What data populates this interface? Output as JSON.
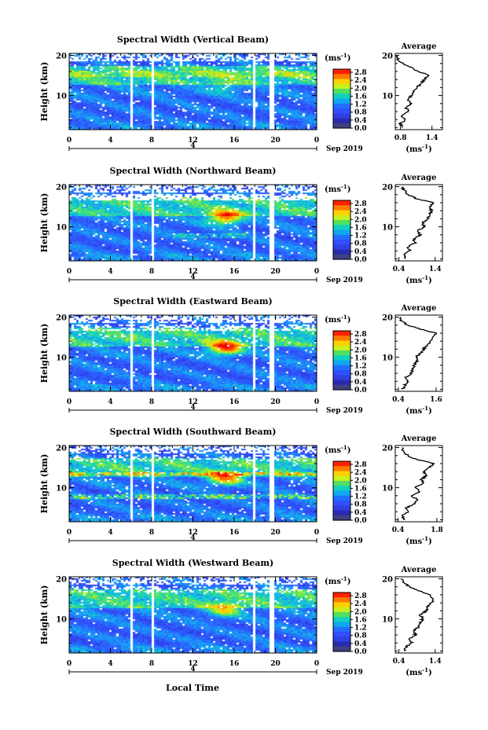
{
  "page": {
    "xlabel": "Local Time"
  },
  "colorbar": {
    "unit": "(ms",
    "unit_exp": "-1",
    "unit_close": ")",
    "ticks": [
      "2.8",
      "2.4",
      "2.0",
      "1.6",
      "1.2",
      "0.8",
      "0.4",
      "0.0"
    ],
    "colors": [
      "#ff2000",
      "#ff7a00",
      "#ffd000",
      "#c8f020",
      "#50e060",
      "#10d0c0",
      "#10a8f0",
      "#2070ff",
      "#3050ff",
      "#3040e0",
      "#2a2ab0",
      "#404080"
    ]
  },
  "chart_data": [
    {
      "type": "heatmap",
      "title": "Spectral Width (Vertical Beam)",
      "ylabel": "Height (km)",
      "yticks": [
        "20",
        "10"
      ],
      "xticks": [
        "0",
        "4",
        "8",
        "12",
        "16",
        "20",
        "0"
      ],
      "date_label": "Sep 2019",
      "day_label": "4",
      "xlim_hours": [
        0,
        24
      ],
      "ylim_km": [
        1.5,
        20.5
      ],
      "data_gaps_hours": [
        [
          5.8,
          6.1
        ],
        [
          7.8,
          8.2
        ],
        [
          17.6,
          17.9
        ],
        [
          19.4,
          19.7
        ]
      ],
      "avg": {
        "title": "Average",
        "xlabel": "(ms",
        "xlabel_exp": "-1",
        "xlabel_close": ")",
        "xticks": [
          "0.8",
          "1.4"
        ],
        "xlim": [
          0.7,
          1.6
        ],
        "yticks": [
          "20",
          "10"
        ]
      },
      "avg_profile": {
        "height_km": [
          2,
          3,
          4,
          5,
          6,
          7,
          8,
          9,
          10,
          11,
          12,
          13,
          14,
          15,
          16,
          17,
          18,
          19,
          20
        ],
        "width_ms": [
          0.85,
          0.8,
          0.9,
          0.82,
          0.95,
          0.9,
          1.0,
          0.95,
          1.0,
          1.05,
          1.1,
          1.2,
          1.25,
          1.35,
          1.15,
          1.0,
          0.85,
          0.75,
          0.72
        ]
      }
    },
    {
      "type": "heatmap",
      "title": "Spectral Width (Northward Beam)",
      "ylabel": "Height (km)",
      "yticks": [
        "20",
        "10"
      ],
      "xticks": [
        "0",
        "4",
        "8",
        "12",
        "16",
        "20",
        "0"
      ],
      "date_label": "Sep 2019",
      "day_label": "4",
      "xlim_hours": [
        0,
        24
      ],
      "ylim_km": [
        1.5,
        20.5
      ],
      "data_gaps_hours": [
        [
          5.8,
          6.1
        ],
        [
          7.8,
          8.2
        ],
        [
          17.6,
          17.9
        ],
        [
          19.4,
          19.7
        ]
      ],
      "avg": {
        "title": "Average",
        "xlabel": "(ms",
        "xlabel_exp": "-1",
        "xlabel_close": ")",
        "xticks": [
          "0.4",
          "1.4"
        ],
        "xlim": [
          0.3,
          1.6
        ],
        "yticks": [
          "20",
          "10"
        ]
      },
      "avg_profile": {
        "height_km": [
          2,
          3,
          4,
          5,
          6,
          7,
          8,
          9,
          10,
          11,
          12,
          13,
          14,
          15,
          16,
          17,
          18,
          19,
          20
        ],
        "width_ms": [
          0.6,
          0.55,
          0.7,
          0.65,
          0.85,
          0.8,
          1.0,
          0.9,
          1.1,
          1.05,
          1.2,
          1.25,
          1.3,
          1.25,
          1.35,
          0.9,
          0.65,
          0.55,
          0.5
        ]
      }
    },
    {
      "type": "heatmap",
      "title": "Spectral Width (Eastward Beam)",
      "ylabel": "Height (km)",
      "yticks": [
        "20",
        "10"
      ],
      "xticks": [
        "0",
        "4",
        "8",
        "12",
        "16",
        "20",
        "0"
      ],
      "date_label": "Sep 2019",
      "day_label": "4",
      "xlim_hours": [
        0,
        24
      ],
      "ylim_km": [
        1.5,
        20.5
      ],
      "data_gaps_hours": [
        [
          5.8,
          6.1
        ],
        [
          7.8,
          8.2
        ],
        [
          17.6,
          17.9
        ],
        [
          19.4,
          19.7
        ]
      ],
      "avg": {
        "title": "Average",
        "xlabel": "(ms",
        "xlabel_exp": "-1",
        "xlabel_close": ")",
        "xticks": [
          "0.4",
          "1.6"
        ],
        "xlim": [
          0.3,
          1.8
        ],
        "yticks": [
          "20",
          "10"
        ]
      },
      "avg_profile": {
        "height_km": [
          2,
          3,
          4,
          5,
          6,
          7,
          8,
          9,
          10,
          11,
          12,
          13,
          14,
          15,
          16,
          17,
          18,
          19,
          20
        ],
        "width_ms": [
          0.55,
          0.6,
          0.7,
          0.65,
          0.8,
          0.85,
          0.9,
          1.0,
          0.95,
          1.1,
          1.2,
          1.3,
          1.45,
          1.5,
          1.6,
          1.1,
          0.7,
          0.5,
          0.45
        ]
      }
    },
    {
      "type": "heatmap",
      "title": "Spectral Width (Southward Beam)",
      "ylabel": "Height (km)",
      "yticks": [
        "20",
        "10"
      ],
      "xticks": [
        "0",
        "4",
        "8",
        "12",
        "16",
        "20",
        "0"
      ],
      "date_label": "Sep 2019",
      "day_label": "4",
      "xlim_hours": [
        0,
        24
      ],
      "ylim_km": [
        1.5,
        20.5
      ],
      "data_gaps_hours": [
        [
          5.8,
          6.1
        ],
        [
          7.8,
          8.2
        ],
        [
          17.6,
          17.9
        ],
        [
          19.4,
          19.7
        ]
      ],
      "avg": {
        "title": "Average",
        "xlabel": "(ms",
        "xlabel_exp": "-1",
        "xlabel_close": ")",
        "xticks": [
          "0.4",
          "1.8"
        ],
        "xlim": [
          0.3,
          2.0
        ],
        "yticks": [
          "20",
          "10"
        ]
      },
      "avg_profile": {
        "height_km": [
          2,
          3,
          4,
          5,
          6,
          7,
          8,
          9,
          10,
          11,
          12,
          13,
          14,
          15,
          16,
          17,
          18,
          19,
          20
        ],
        "width_ms": [
          0.6,
          0.55,
          0.8,
          0.7,
          1.0,
          1.1,
          0.9,
          1.2,
          1.0,
          1.3,
          1.25,
          1.4,
          1.35,
          1.5,
          1.7,
          1.1,
          0.75,
          0.6,
          0.55
        ]
      }
    },
    {
      "type": "heatmap",
      "title": "Spectral Width (Westward Beam)",
      "ylabel": "Height (km)",
      "yticks": [
        "20",
        "10"
      ],
      "xticks": [
        "0",
        "4",
        "8",
        "12",
        "16",
        "20",
        "0"
      ],
      "date_label": "Sep 2019",
      "day_label": "4",
      "xlim_hours": [
        0,
        24
      ],
      "ylim_km": [
        1.5,
        20.5
      ],
      "data_gaps_hours": [
        [
          5.8,
          6.1
        ],
        [
          7.8,
          8.2
        ],
        [
          17.6,
          17.9
        ],
        [
          19.4,
          19.7
        ]
      ],
      "avg": {
        "title": "Average",
        "xlabel": "(ms",
        "xlabel_exp": "-1",
        "xlabel_close": ")",
        "xticks": [
          "0.4",
          "1.4"
        ],
        "xlim": [
          0.3,
          1.6
        ],
        "yticks": [
          "20",
          "10"
        ]
      },
      "avg_profile": {
        "height_km": [
          2,
          3,
          4,
          5,
          6,
          7,
          8,
          9,
          10,
          11,
          12,
          13,
          14,
          15,
          16,
          17,
          18,
          19,
          20
        ],
        "width_ms": [
          0.55,
          0.6,
          0.75,
          0.7,
          0.85,
          0.8,
          0.95,
          1.0,
          1.05,
          1.0,
          1.15,
          1.2,
          1.3,
          1.35,
          1.25,
          0.95,
          0.7,
          0.55,
          0.45
        ]
      }
    }
  ]
}
